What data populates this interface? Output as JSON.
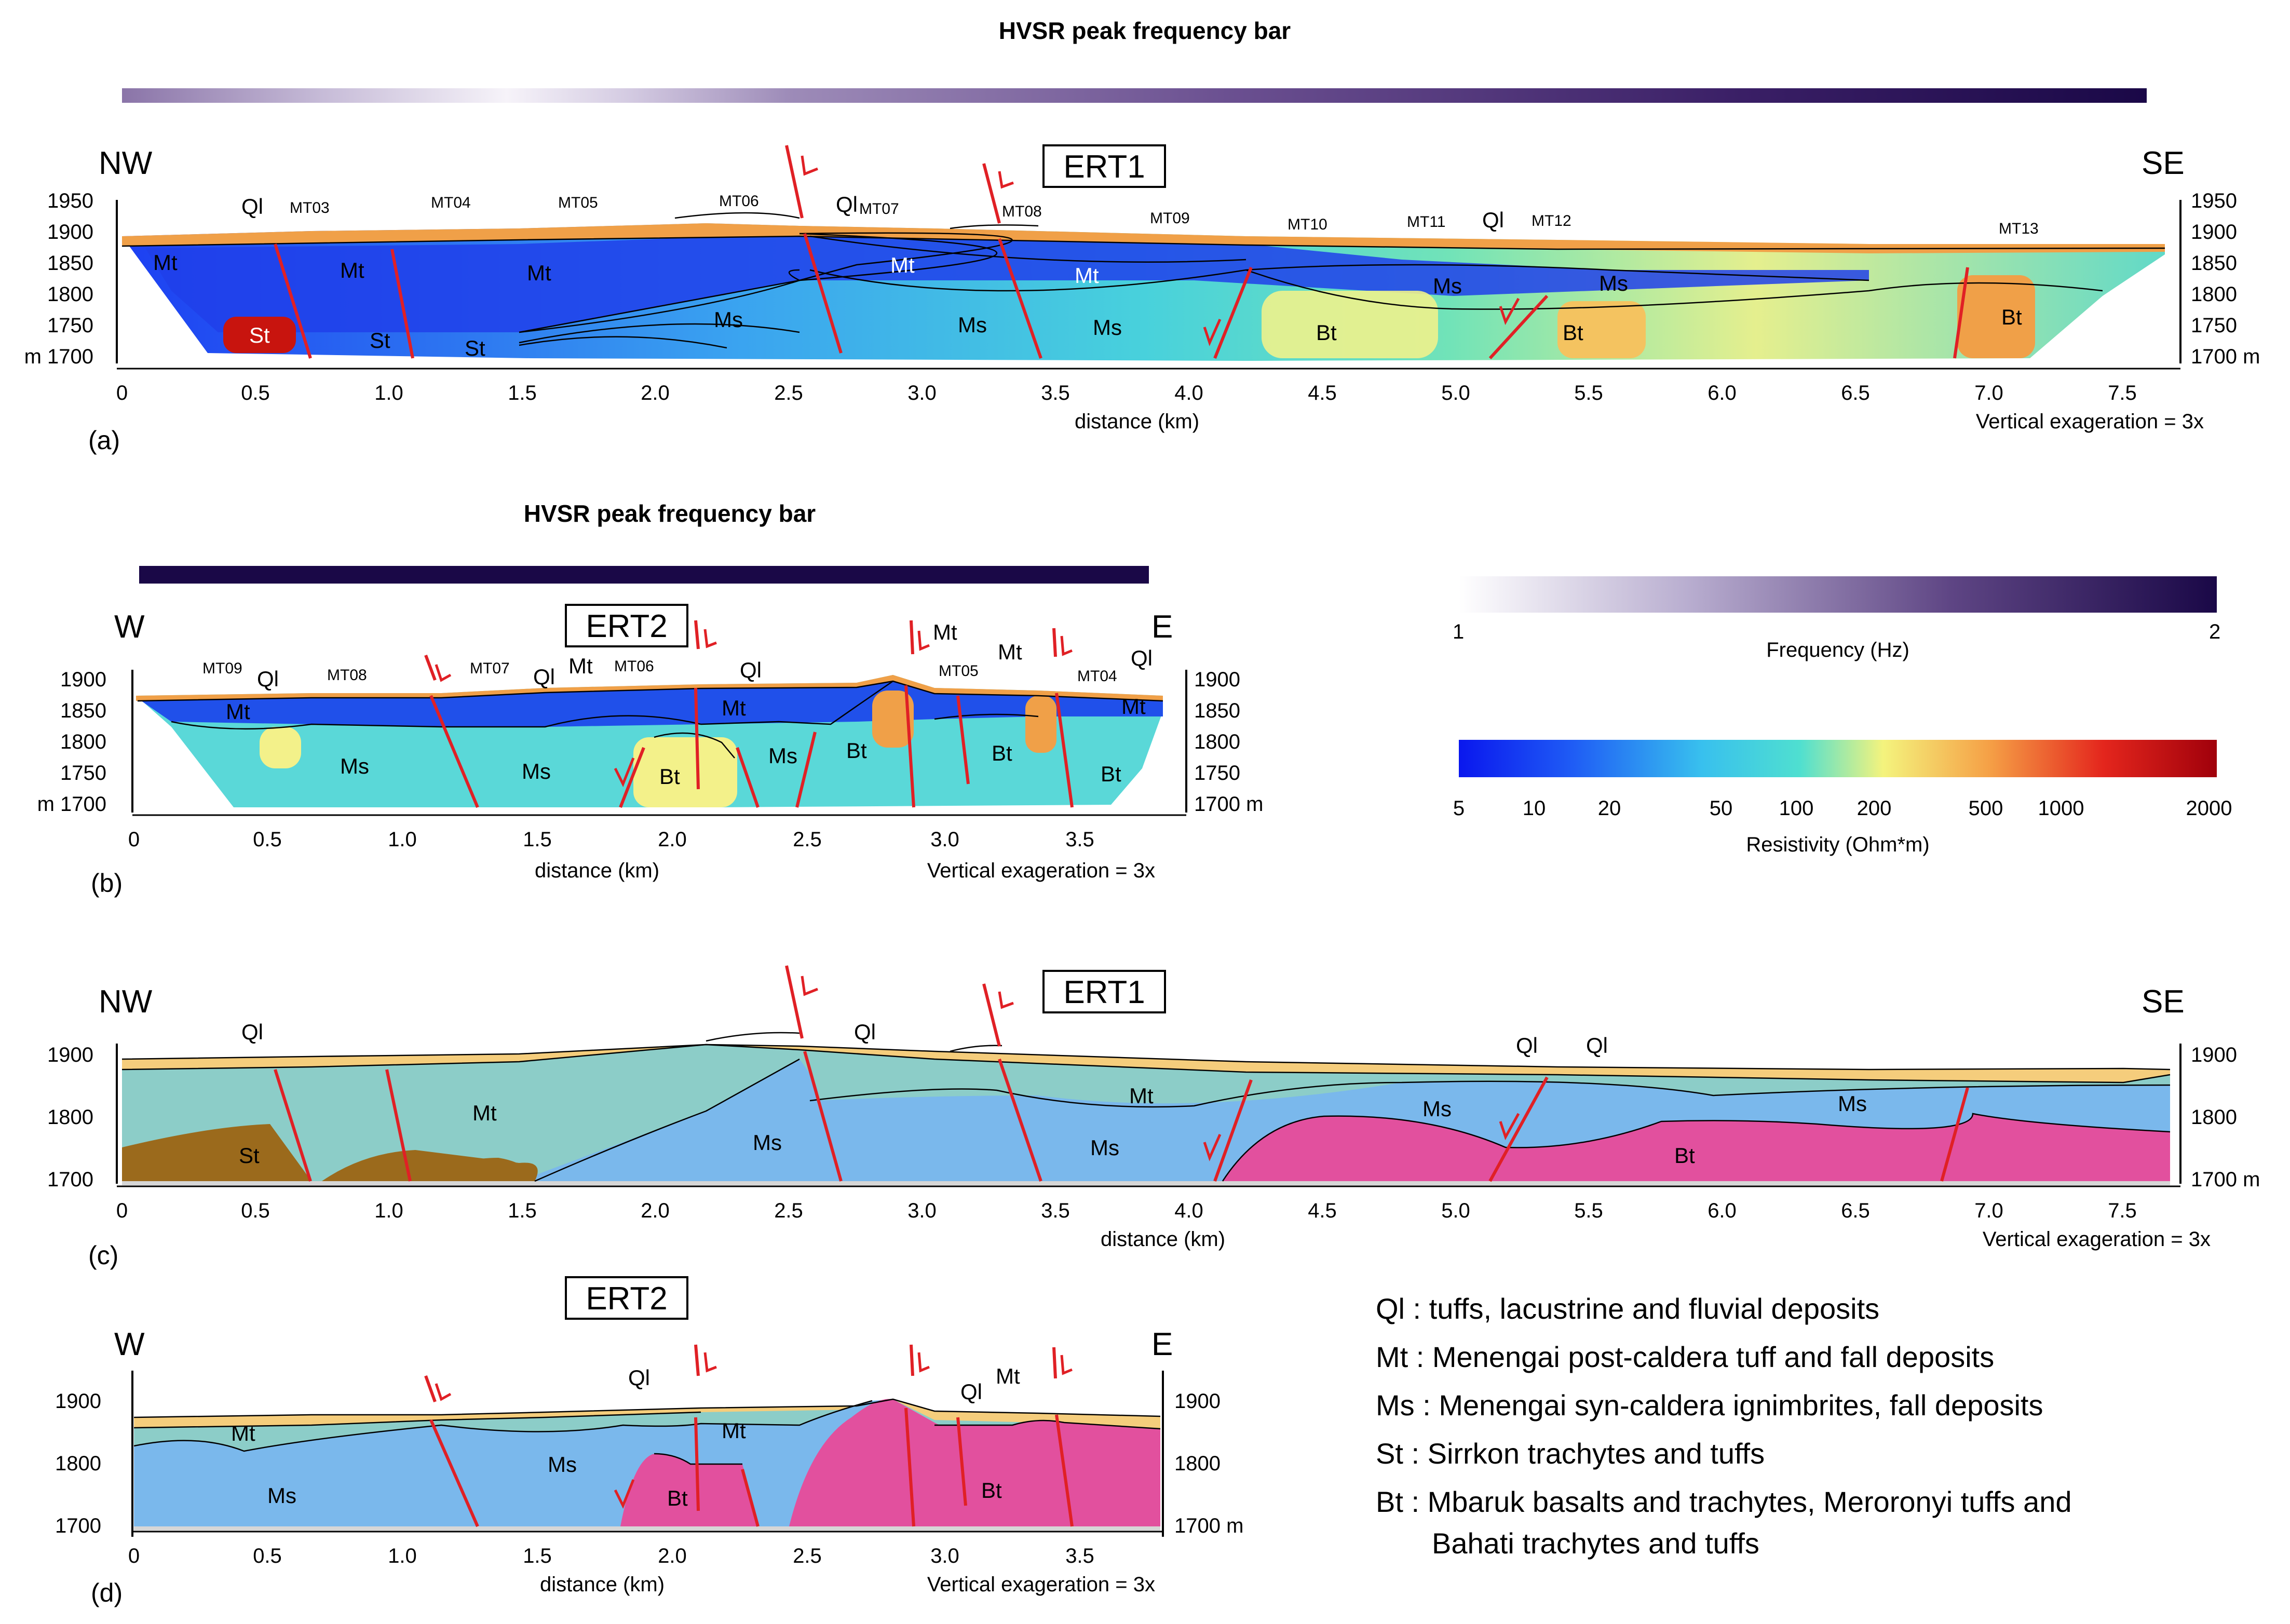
{
  "colors": {
    "hvsr_low": "#f4f1f8",
    "hvsr_high": "#1a0847",
    "resistivity_stops": [
      "#0a17ee",
      "#1f5cf5",
      "#38c0ee",
      "#4fdfd0",
      "#f4f37d",
      "#f5a046",
      "#e4261d",
      "#a0000b"
    ],
    "Ql": "#f5cd7c",
    "Mt": "#8ccdc8",
    "Ms": "#7ab8ec",
    "St": "#9b6a1c",
    "Bt": "#e2509e",
    "fault": "#e02025"
  },
  "top_bar": {
    "title": "HVSR peak frequency bar"
  },
  "mid_bar": {
    "title": "HVSR peak frequency bar"
  },
  "panel_a": {
    "label": "(a)",
    "profile": "ERT1",
    "left_dir": "NW",
    "right_dir": "SE",
    "xticks": [
      "0",
      "0.5",
      "1.0",
      "1.5",
      "2.0",
      "2.5",
      "3.0",
      "3.5",
      "4.0",
      "4.5",
      "5.0",
      "5.5",
      "6.0",
      "6.5",
      "7.0",
      "7.5"
    ],
    "ylabels_left": [
      "1950",
      "1900",
      "1850",
      "1800",
      "1750",
      "m 1700"
    ],
    "ylabels_right": [
      "1950",
      "1900",
      "1850",
      "1800",
      "1750",
      "1700 m"
    ],
    "xlabel": "distance (km)",
    "vex": "Vertical exageration = 3x",
    "stations": [
      "MT03",
      "MT04",
      "MT05",
      "MT06",
      "MT07",
      "MT08",
      "MT09",
      "MT10",
      "MT11",
      "MT12",
      "MT13"
    ],
    "units": [
      "Ql",
      "Ql",
      "Ql",
      "Mt",
      "Mt",
      "Mt",
      "Mt",
      "Mt",
      "Ms",
      "Ms",
      "Ms",
      "Ms",
      "Ms",
      "Bt",
      "Bt",
      "Bt",
      "St",
      "St",
      "St"
    ]
  },
  "panel_b": {
    "label": "(b)",
    "profile": "ERT2",
    "left_dir": "W",
    "right_dir": "E",
    "xticks": [
      "0",
      "0.5",
      "1.0",
      "1.5",
      "2.0",
      "2.5",
      "3.0",
      "3.5"
    ],
    "ylabels_left": [
      "1900",
      "1850",
      "1800",
      "1750",
      "m 1700"
    ],
    "ylabels_right": [
      "1900",
      "1850",
      "1800",
      "1750",
      "1700 m"
    ],
    "xlabel": "distance (km)",
    "vex": "Vertical exageration = 3x",
    "stations": [
      "MT09",
      "MT08",
      "MT07",
      "MT06",
      "MT05",
      "MT04"
    ],
    "units": [
      "Ql",
      "Ql",
      "Ql",
      "Ql",
      "Mt",
      "Mt",
      "Mt",
      "Mt",
      "Mt",
      "Mt",
      "Ms",
      "Ms",
      "Ms",
      "Bt",
      "Bt",
      "Bt",
      "Bt"
    ]
  },
  "legend_frequency": {
    "min": "1",
    "max": "2",
    "label": "Frequency (Hz)"
  },
  "legend_resistivity": {
    "ticks": [
      "5",
      "10",
      "20",
      "50",
      "100",
      "200",
      "500",
      "1000",
      "2000"
    ],
    "label": "Resistivity (Ohm*m)"
  },
  "panel_c": {
    "label": "(c)",
    "profile": "ERT1",
    "left_dir": "NW",
    "right_dir": "SE",
    "xticks": [
      "0",
      "0.5",
      "1.0",
      "1.5",
      "2.0",
      "2.5",
      "3.0",
      "3.5",
      "4.0",
      "4.5",
      "5.0",
      "5.5",
      "6.0",
      "6.5",
      "7.0",
      "7.5"
    ],
    "ylabels_left": [
      "1900",
      "1800",
      "1700"
    ],
    "ylabels_right": [
      "1900",
      "1800",
      "1700 m"
    ],
    "xlabel": "distance (km)",
    "vex": "Vertical exageration = 3x",
    "units": [
      "Ql",
      "Ql",
      "Ql",
      "Ql",
      "Mt",
      "Mt",
      "Ms",
      "Ms",
      "Ms",
      "Ms",
      "St",
      "Bt"
    ]
  },
  "panel_d": {
    "label": "(d)",
    "profile": "ERT2",
    "left_dir": "W",
    "right_dir": "E",
    "xticks": [
      "0",
      "0.5",
      "1.0",
      "1.5",
      "2.0",
      "2.5",
      "3.0",
      "3.5"
    ],
    "ylabels_left": [
      "1900",
      "1800",
      "1700"
    ],
    "ylabels_right": [
      "1900",
      "1800",
      "1700 m"
    ],
    "xlabel": "distance (km)",
    "vex": "Vertical exageration = 3x",
    "units": [
      "Ql",
      "Ql",
      "Mt",
      "Mt",
      "Mt",
      "Ms",
      "Ms",
      "Bt",
      "Bt"
    ]
  },
  "legend": [
    "Ql : tuffs, lacustrine and fluvial deposits",
    "Mt : Menengai post-caldera tuff and fall deposits",
    "Ms : Menengai syn-caldera ignimbrites, fall deposits",
    "St : Sirrkon trachytes and tuffs",
    "Bt : Mbaruk basalts and trachytes, Meroronyi tuffs and",
    "Bahati trachytes and tuffs"
  ]
}
